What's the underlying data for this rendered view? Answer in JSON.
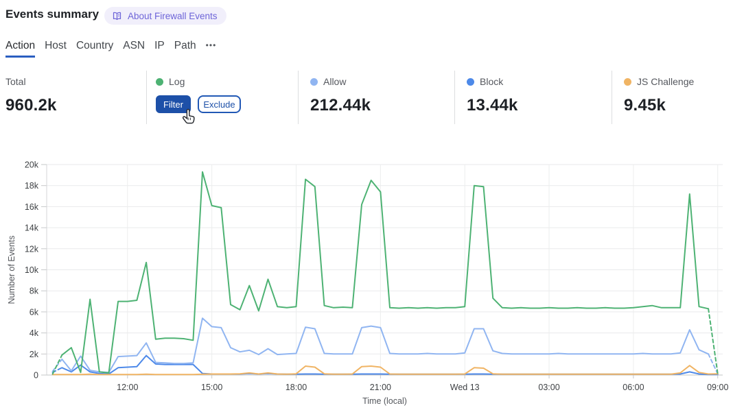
{
  "header": {
    "title": "Events summary",
    "about_badge": "About Firewall Events"
  },
  "tabs": {
    "items": [
      "Action",
      "Host",
      "Country",
      "ASN",
      "IP",
      "Path"
    ],
    "active": "Action",
    "more_label": "•••"
  },
  "cards": {
    "total": {
      "label": "Total",
      "value": "960.2k"
    },
    "log": {
      "label": "Log",
      "dot_color": "#4db273",
      "filter_label": "Filter",
      "exclude_label": "Exclude"
    },
    "allow": {
      "label": "Allow",
      "value": "212.44k",
      "dot_color": "#90b5f1"
    },
    "block": {
      "label": "Block",
      "value": "13.44k",
      "dot_color": "#4d89e9"
    },
    "js_challenge": {
      "label": "JS Challenge",
      "value": "9.45k",
      "dot_color": "#f0b464"
    }
  },
  "chart_data": {
    "type": "line",
    "xlabel": "Time (local)",
    "ylabel": "Number of Events",
    "x_interval_minutes": 20,
    "ylim_k": [
      0,
      20
    ],
    "grid": true,
    "y_tick_labels": [
      "0",
      "2k",
      "4k",
      "6k",
      "8k",
      "10k",
      "12k",
      "14k",
      "16k",
      "18k",
      "20k"
    ],
    "x_ticks": [
      {
        "index": 8,
        "label": "12:00"
      },
      {
        "index": 17,
        "label": "15:00"
      },
      {
        "index": 26,
        "label": "18:00"
      },
      {
        "index": 35,
        "label": "21:00"
      },
      {
        "index": 44,
        "label": "Wed 13"
      },
      {
        "index": 53,
        "label": "03:00"
      },
      {
        "index": 62,
        "label": "06:00"
      },
      {
        "index": 71,
        "label": "09:00"
      }
    ],
    "series": [
      {
        "name": "Block",
        "color": "#4d89e9",
        "dash_first": true,
        "dash_last": false,
        "values_k": [
          0.25,
          0.7,
          0.3,
          0.95,
          0.3,
          0.15,
          0.1,
          0.7,
          0.75,
          0.8,
          1.85,
          1.05,
          1.0,
          1.0,
          1.0,
          1.0,
          0.15,
          0.1,
          0.1,
          0.1,
          0.1,
          0.15,
          0.1,
          0.15,
          0.1,
          0.08,
          0.08,
          0.1,
          0.1,
          0.08,
          0.08,
          0.08,
          0.08,
          0.1,
          0.1,
          0.1,
          0.08,
          0.08,
          0.08,
          0.08,
          0.08,
          0.08,
          0.08,
          0.08,
          0.08,
          0.1,
          0.1,
          0.08,
          0.08,
          0.08,
          0.08,
          0.08,
          0.08,
          0.08,
          0.08,
          0.08,
          0.08,
          0.08,
          0.08,
          0.08,
          0.08,
          0.08,
          0.08,
          0.08,
          0.08,
          0.08,
          0.08,
          0.1,
          0.3,
          0.1,
          0.05,
          0.05
        ]
      },
      {
        "name": "Allow",
        "color": "#90b5f1",
        "dash_first": true,
        "dash_last": true,
        "values_k": [
          0.35,
          1.5,
          0.4,
          1.8,
          0.45,
          0.3,
          0.25,
          1.75,
          1.8,
          1.85,
          3.05,
          1.2,
          1.15,
          1.1,
          1.1,
          1.15,
          5.4,
          4.6,
          4.5,
          2.6,
          2.2,
          2.35,
          1.95,
          2.5,
          1.95,
          2.0,
          2.05,
          4.55,
          4.4,
          2.05,
          2.0,
          2.0,
          2.0,
          4.5,
          4.65,
          4.5,
          2.05,
          2.0,
          2.0,
          2.0,
          2.05,
          2.0,
          2.0,
          2.0,
          2.1,
          4.4,
          4.4,
          2.3,
          2.05,
          2.0,
          2.0,
          2.0,
          2.0,
          2.0,
          2.05,
          2.0,
          2.0,
          2.0,
          2.0,
          2.0,
          2.0,
          2.0,
          2.0,
          2.05,
          2.0,
          2.0,
          2.0,
          2.1,
          4.3,
          2.4,
          2.0,
          0.1
        ]
      },
      {
        "name": "JS Challenge",
        "color": "#f0b464",
        "dash_first": false,
        "dash_last": false,
        "values_k": [
          0.05,
          0.05,
          0.05,
          0.05,
          0.08,
          0.05,
          0.05,
          0.05,
          0.05,
          0.05,
          0.08,
          0.05,
          0.05,
          0.05,
          0.05,
          0.05,
          0.08,
          0.1,
          0.1,
          0.1,
          0.12,
          0.2,
          0.1,
          0.2,
          0.1,
          0.08,
          0.12,
          0.85,
          0.75,
          0.12,
          0.08,
          0.08,
          0.1,
          0.8,
          0.85,
          0.75,
          0.1,
          0.08,
          0.08,
          0.08,
          0.08,
          0.08,
          0.08,
          0.08,
          0.1,
          0.7,
          0.65,
          0.12,
          0.08,
          0.08,
          0.08,
          0.08,
          0.08,
          0.08,
          0.08,
          0.08,
          0.08,
          0.08,
          0.08,
          0.08,
          0.08,
          0.08,
          0.08,
          0.08,
          0.08,
          0.08,
          0.08,
          0.2,
          0.9,
          0.25,
          0.1,
          0.12
        ]
      },
      {
        "name": "Log",
        "color": "#4db273",
        "dash_first": true,
        "dash_last": true,
        "values_k": [
          0.1,
          1.9,
          2.6,
          0.25,
          7.2,
          0.3,
          0.2,
          7.0,
          7.0,
          7.1,
          10.7,
          3.4,
          3.5,
          3.5,
          3.45,
          3.3,
          19.3,
          16.1,
          15.9,
          6.7,
          6.2,
          8.5,
          6.1,
          9.1,
          6.5,
          6.4,
          6.5,
          18.6,
          17.9,
          6.6,
          6.4,
          6.45,
          6.4,
          16.2,
          18.5,
          17.4,
          6.4,
          6.35,
          6.4,
          6.35,
          6.4,
          6.35,
          6.4,
          6.4,
          6.5,
          18.0,
          17.9,
          7.3,
          6.4,
          6.35,
          6.4,
          6.35,
          6.35,
          6.4,
          6.35,
          6.35,
          6.4,
          6.35,
          6.35,
          6.4,
          6.35,
          6.35,
          6.4,
          6.5,
          6.6,
          6.4,
          6.4,
          6.4,
          17.2,
          6.5,
          6.3,
          0.1
        ]
      }
    ]
  }
}
